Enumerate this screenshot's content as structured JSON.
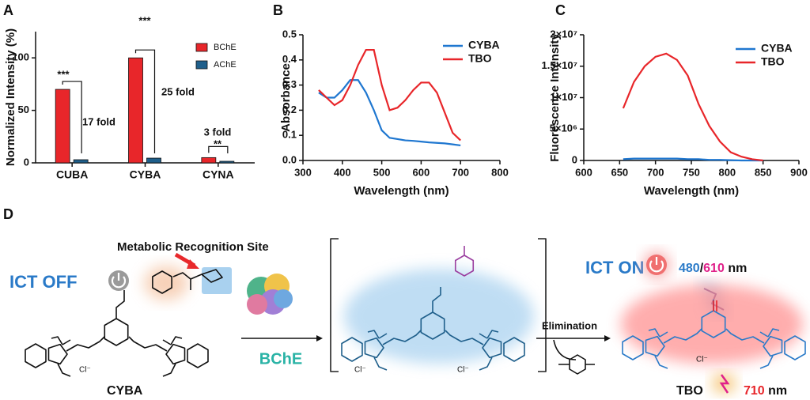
{
  "chart_data": [
    {
      "type": "bar",
      "panel": "A",
      "ylabel": "Normalized Intensity (%)",
      "categories": [
        "CUBA",
        "CYBA",
        "CYNA"
      ],
      "series": [
        {
          "name": "BChE",
          "color": "#e8262a",
          "values": [
            70,
            100,
            5
          ]
        },
        {
          "name": "AChE",
          "color": "#1f5f8b",
          "values": [
            3,
            4.5,
            1.5
          ]
        }
      ],
      "ylim": [
        0,
        125
      ],
      "yticks": [
        0,
        50,
        100
      ],
      "annotations": [
        "***",
        "17 fold",
        "***",
        "25 fold",
        "**",
        "3 fold"
      ]
    },
    {
      "type": "line",
      "panel": "B",
      "xlabel": "Wavelength (nm)",
      "ylabel": "Absorbance",
      "x": [
        340,
        360,
        380,
        400,
        420,
        440,
        460,
        480,
        500,
        520,
        540,
        560,
        580,
        600,
        620,
        640,
        660,
        680,
        700
      ],
      "series": [
        {
          "name": "CYBA",
          "color": "#1f77d0",
          "values": [
            0.27,
            0.25,
            0.25,
            0.28,
            0.32,
            0.32,
            0.27,
            0.2,
            0.12,
            0.09,
            0.085,
            0.08,
            0.078,
            0.075,
            0.072,
            0.07,
            0.068,
            0.064,
            0.06
          ]
        },
        {
          "name": "TBO",
          "color": "#e8262a",
          "values": [
            0.28,
            0.25,
            0.22,
            0.24,
            0.3,
            0.38,
            0.44,
            0.44,
            0.3,
            0.2,
            0.21,
            0.24,
            0.28,
            0.31,
            0.31,
            0.27,
            0.19,
            0.11,
            0.08
          ]
        }
      ],
      "xlim": [
        300,
        800
      ],
      "xticks": [
        300,
        400,
        500,
        600,
        700,
        800
      ],
      "ylim": [
        0,
        0.5
      ],
      "yticks": [
        {
          "value": 0,
          "label": "0.0"
        },
        0.1,
        0.2,
        0.3,
        0.4,
        0.5
      ]
    },
    {
      "type": "line",
      "panel": "C",
      "xlabel": "Wavelength (nm)",
      "ylabel": "Fluorescence Intensity",
      "x": [
        655,
        670,
        685,
        700,
        715,
        730,
        745,
        760,
        775,
        790,
        805,
        820,
        835,
        850
      ],
      "series": [
        {
          "name": "CYBA",
          "color": "#1f77d0",
          "values": [
            200000,
            300000,
            300000,
            300000,
            300000,
            300000,
            200000,
            200000,
            100000,
            100000,
            50000,
            0,
            0,
            0
          ]
        },
        {
          "name": "TBO",
          "color": "#e8262a",
          "values": [
            8300000,
            12500000,
            15000000,
            16500000,
            17000000,
            16000000,
            13500000,
            9000000,
            5500000,
            3000000,
            1300000,
            600000,
            200000,
            0
          ]
        }
      ],
      "xlim": [
        600,
        900
      ],
      "xticks": [
        600,
        650,
        700,
        750,
        800,
        850,
        900
      ],
      "ylim": [
        0,
        20000000
      ],
      "yticks": [
        0,
        {
          "value": 5000000,
          "label": "5×10⁶"
        },
        {
          "value": 10000000,
          "label": "1×10⁷"
        },
        {
          "value": 15000000,
          "label": "1.5×10⁷"
        },
        {
          "value": 20000000,
          "label": "2×10⁷"
        }
      ]
    }
  ],
  "diagram": {
    "panel": "D",
    "site_label": "Metabolic Recognition Site",
    "left_state": "ICT OFF",
    "right_state": "ICT ON",
    "probe": "CYBA",
    "enzyme": "BChE",
    "step": "Elimination",
    "product": "TBO",
    "counter_ion": "Cl⁻",
    "absorption": [
      "480",
      "/",
      "610",
      "nm"
    ],
    "emission": [
      "710",
      "nm"
    ]
  }
}
